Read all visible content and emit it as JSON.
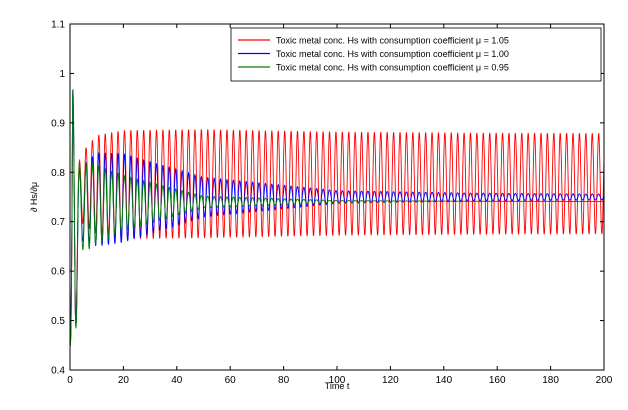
{
  "chart_data": {
    "type": "line",
    "title": "",
    "xlabel": "Time t",
    "ylabel": "∂ Hs/∂μ",
    "xlim": [
      0,
      200
    ],
    "ylim": [
      0.4,
      1.1
    ],
    "x_ticks": [
      0,
      20,
      40,
      60,
      80,
      100,
      120,
      140,
      160,
      180,
      200
    ],
    "y_ticks": [
      0.4,
      0.5,
      0.6,
      0.7,
      0.8,
      0.9,
      1.0,
      1.1
    ],
    "x_tick_labels": [
      "0",
      "20",
      "40",
      "60",
      "80",
      "100",
      "120",
      "140",
      "160",
      "180",
      "200"
    ],
    "y_tick_labels": [
      "0.4",
      "0.5",
      "0.6",
      "0.7",
      "0.8",
      "0.9",
      "1",
      "1.1"
    ],
    "grid": false,
    "legend_position": "top-right",
    "oscillation_period": 2.4,
    "series": [
      {
        "name": "Toxic metal conc. Hs with consumption coefficient μ = 1.05",
        "color": "#ff0000",
        "x": [
          0,
          1,
          2,
          3,
          4,
          6,
          10,
          20,
          50,
          100,
          150,
          200
        ],
        "center": [
          0.45,
          0.7,
          0.6,
          0.75,
          0.76,
          0.77,
          0.775,
          0.775,
          0.777,
          0.777,
          0.777,
          0.777
        ],
        "amplitude": [
          0.0,
          0.25,
          0.17,
          0.08,
          0.06,
          0.08,
          0.1,
          0.11,
          0.11,
          0.105,
          0.103,
          0.102
        ]
      },
      {
        "name": "Toxic metal conc. Hs with consumption coefficient μ = 1.00",
        "color": "#0000ff",
        "x": [
          0,
          1,
          2,
          3,
          4,
          6,
          10,
          20,
          50,
          100,
          150,
          200
        ],
        "center": [
          0.45,
          0.72,
          0.6,
          0.72,
          0.73,
          0.74,
          0.745,
          0.748,
          0.75,
          0.75,
          0.75,
          0.75
        ],
        "amplitude": [
          0.0,
          0.28,
          0.17,
          0.1,
          0.07,
          0.08,
          0.095,
          0.09,
          0.04,
          0.013,
          0.008,
          0.006
        ]
      },
      {
        "name": "Toxic metal conc. Hs with consumption coefficient μ = 0.95",
        "color": "#008000",
        "x": [
          0,
          1,
          2,
          3,
          4,
          6,
          10,
          20,
          50,
          100,
          150,
          200
        ],
        "center": [
          0.45,
          0.72,
          0.6,
          0.72,
          0.725,
          0.73,
          0.735,
          0.738,
          0.74,
          0.741,
          0.741,
          0.741
        ],
        "amplitude": [
          0.0,
          0.28,
          0.17,
          0.12,
          0.08,
          0.09,
          0.08,
          0.055,
          0.012,
          0.002,
          0.0005,
          0.0
        ]
      }
    ]
  }
}
